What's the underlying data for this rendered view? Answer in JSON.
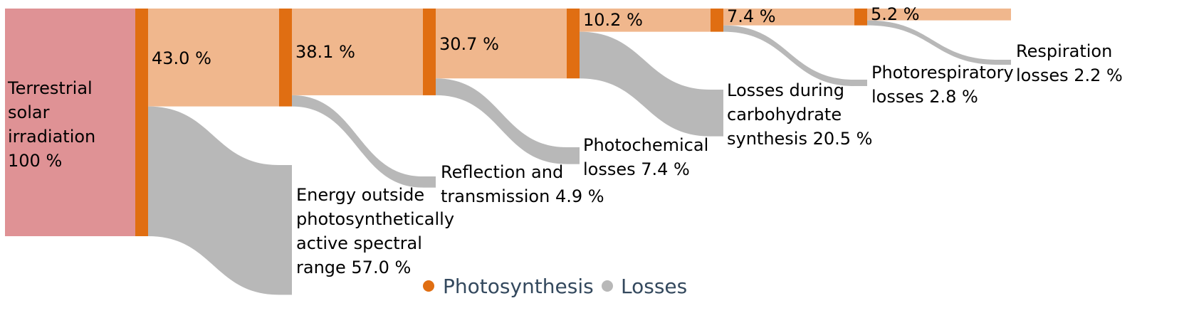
{
  "chart_data": {
    "type": "sankey",
    "colors": {
      "source": "#df9295",
      "stage_bar": "#e06e12",
      "main_flow": "#f0b78d",
      "loss_flow": "#b8b8b8",
      "legend_text": "#34495e"
    },
    "source": {
      "label_lines": [
        "Terrestrial",
        "solar",
        "irradiation",
        "100 %"
      ],
      "value": 100
    },
    "stages": [
      {
        "label": "43.0 %",
        "value": 43.0
      },
      {
        "label": "38.1 %",
        "value": 38.1
      },
      {
        "label": "30.7 %",
        "value": 30.7
      },
      {
        "label": "10.2 %",
        "value": 10.2
      },
      {
        "label": "7.4 %",
        "value": 7.4
      },
      {
        "label": "5.2 %",
        "value": 5.2
      }
    ],
    "losses": [
      {
        "label_lines": [
          "Energy outside",
          "photosynthetically",
          "active spectral",
          "range 57.0 %"
        ],
        "value": 57.0
      },
      {
        "label_lines": [
          "Reflection and",
          "transmission 4.9 %"
        ],
        "value": 4.9
      },
      {
        "label_lines": [
          "Photochemical",
          "losses 7.4 %"
        ],
        "value": 7.4
      },
      {
        "label_lines": [
          "Losses during",
          "carbohydrate",
          "synthesis 20.5 %"
        ],
        "value": 20.5
      },
      {
        "label_lines": [
          "Photorespiratory",
          "losses 2.8 %"
        ],
        "value": 2.8
      },
      {
        "label_lines": [
          "Respiration",
          "losses 2.2 %"
        ],
        "value": 2.2
      }
    ],
    "legend": {
      "placement": "bottom-center",
      "items": [
        {
          "label": "Photosynthesis",
          "color": "#e06e12"
        },
        {
          "label": "Losses",
          "color": "#b8b8b8"
        }
      ]
    }
  }
}
